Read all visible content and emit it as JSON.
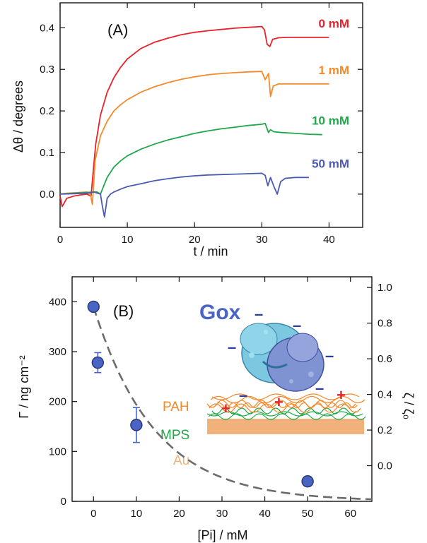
{
  "chart_data": [
    {
      "type": "line",
      "panel_label": "(A)",
      "xlabel": "t / min",
      "ylabel": "Δθ / degrees",
      "xlim": [
        0,
        45
      ],
      "ylim": [
        -0.08,
        0.46
      ],
      "xticks": [
        "0",
        "10",
        "20",
        "30",
        "40"
      ],
      "yticks": [
        "0.0",
        "0.1",
        "0.2",
        "0.3",
        "0.4"
      ],
      "xtick_values": [
        0,
        10,
        20,
        30,
        40
      ],
      "ytick_values": [
        0.0,
        0.1,
        0.2,
        0.3,
        0.4
      ],
      "series": [
        {
          "name": "0 mM",
          "color": "#e8222a",
          "x": [
            0,
            0.3,
            1,
            2,
            3,
            4,
            4.6,
            4.9,
            5.3,
            6,
            7,
            8,
            9,
            10,
            12,
            14,
            16,
            18,
            20,
            22,
            24,
            26,
            28,
            30,
            30.4,
            30.8,
            31.2,
            31.6,
            32.5,
            34,
            36,
            38,
            40
          ],
          "y": [
            -0.005,
            -0.03,
            -0.01,
            -0.005,
            -0.002,
            0.0,
            -0.005,
            0.05,
            0.12,
            0.19,
            0.245,
            0.28,
            0.305,
            0.325,
            0.35,
            0.365,
            0.375,
            0.383,
            0.389,
            0.393,
            0.396,
            0.399,
            0.401,
            0.403,
            0.395,
            0.36,
            0.355,
            0.372,
            0.376,
            0.377,
            0.377,
            0.377,
            0.377
          ]
        },
        {
          "name": "1 mM",
          "color": "#f5892b",
          "x": [
            0,
            1,
            2,
            3,
            4,
            4.5,
            4.8,
            5.2,
            6,
            7,
            8,
            9,
            10,
            12,
            14,
            16,
            18,
            20,
            22,
            24,
            26,
            28,
            30,
            30.5,
            31,
            31.3,
            31.7,
            32.5,
            34,
            36,
            38,
            40
          ],
          "y": [
            0.0,
            0.002,
            0.003,
            0.004,
            0.005,
            0.0,
            -0.025,
            0.08,
            0.14,
            0.175,
            0.2,
            0.215,
            0.227,
            0.245,
            0.258,
            0.268,
            0.276,
            0.282,
            0.287,
            0.29,
            0.292,
            0.294,
            0.295,
            0.275,
            0.29,
            0.235,
            0.26,
            0.265,
            0.265,
            0.265,
            0.265,
            0.265
          ]
        },
        {
          "name": "10 mM",
          "color": "#1fa84a",
          "x": [
            0,
            2,
            4,
            5,
            5.5,
            6,
            6.5,
            7,
            8,
            9,
            10,
            12,
            14,
            16,
            18,
            20,
            22,
            24,
            26,
            28,
            30,
            30.5,
            31,
            31.3,
            31.8,
            33,
            35,
            37,
            39
          ],
          "y": [
            0.0,
            0.002,
            0.004,
            0.005,
            0.005,
            0.0,
            0.02,
            0.04,
            0.065,
            0.08,
            0.092,
            0.108,
            0.12,
            0.13,
            0.138,
            0.146,
            0.152,
            0.157,
            0.161,
            0.165,
            0.168,
            0.17,
            0.148,
            0.155,
            0.15,
            0.148,
            0.146,
            0.144,
            0.143
          ]
        },
        {
          "name": "50 mM",
          "color": "#4a5bb0",
          "x": [
            0,
            2,
            4,
            5,
            6,
            6.3,
            6.6,
            7,
            7.5,
            8,
            9,
            10,
            12,
            14,
            16,
            18,
            20,
            22,
            24,
            26,
            28,
            30,
            30.5,
            30.9,
            31.3,
            31.8,
            32.3,
            32.8,
            33.5,
            35,
            37
          ],
          "y": [
            0.0,
            0.001,
            0.002,
            0.005,
            0.0,
            -0.03,
            -0.055,
            -0.01,
            0.0,
            0.005,
            0.012,
            0.018,
            0.025,
            0.032,
            0.037,
            0.041,
            0.044,
            0.046,
            0.047,
            0.048,
            0.049,
            0.05,
            0.045,
            0.02,
            0.04,
            0.018,
            0.0,
            0.03,
            0.038,
            0.04,
            0.04
          ]
        }
      ]
    },
    {
      "type": "scatter",
      "panel_label": "(B)",
      "xlabel": "[Pi] / mM",
      "ylabel": "Γ / ng cm⁻²",
      "ylabel_right": "ζ / ζ₀",
      "xlim": [
        -5,
        65
      ],
      "ylim": [
        0,
        450
      ],
      "ylim_right": [
        -0.2,
        1.06
      ],
      "xticks": [
        "0",
        "10",
        "20",
        "30",
        "40",
        "50",
        "60"
      ],
      "yticks": [
        "0",
        "100",
        "200",
        "300",
        "400"
      ],
      "yticks_right": [
        "0.0",
        "0.2",
        "0.4",
        "0.6",
        "0.8",
        "1.0"
      ],
      "xtick_values": [
        0,
        10,
        20,
        30,
        40,
        50,
        60
      ],
      "ytick_values": [
        0,
        100,
        200,
        300,
        400
      ],
      "ytick_right_values": [
        0.0,
        0.2,
        0.4,
        0.6,
        0.8,
        1.0
      ],
      "points": [
        {
          "x": 0,
          "y": 390,
          "err": 0
        },
        {
          "x": 1,
          "y": 278,
          "err": 20
        },
        {
          "x": 10,
          "y": 153,
          "err": 35
        },
        {
          "x": 50,
          "y": 40,
          "err": 0
        }
      ],
      "point_color": "#4a64c4",
      "fit_curve": {
        "color": "#6b6b6b",
        "style": "dashed",
        "model": "exponential decay",
        "a": 390,
        "k": 0.07
      },
      "inset": {
        "protein": "Gox",
        "layers": [
          "PAH",
          "MPS",
          "Au"
        ],
        "layer_colors": [
          "#f5892b",
          "#1fa84a",
          "#f0b27a"
        ],
        "gox_color": "#4a64c4",
        "charges_negative": [
          "–",
          "–",
          "–",
          "–",
          "–",
          "–"
        ],
        "charges_positive": [
          "+",
          "+",
          "+"
        ],
        "positive_color": "#e8222a",
        "negative_color": "#2a3d9c"
      }
    }
  ]
}
